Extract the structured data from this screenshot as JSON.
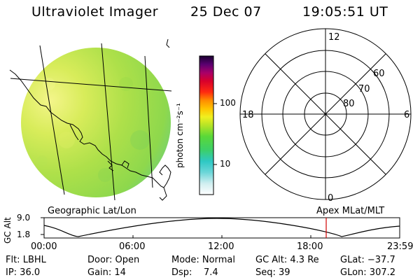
{
  "header": {
    "instrument": "Ultraviolet Imager",
    "date": "25 Dec 07",
    "time": "19:05:51 UT"
  },
  "colorbar": {
    "unit_label": "photon cm⁻²s⁻¹",
    "ticks": [
      "100",
      "10"
    ]
  },
  "polar_plot": {
    "lat_labels": [
      "60",
      "70",
      "80"
    ],
    "mlt_labels": [
      "12",
      "18",
      "6",
      "0"
    ],
    "caption": "Apex MLat/MLT"
  },
  "map_caption": "Geographic Lat/Lon",
  "timeline": {
    "ylabel": "GC Alt",
    "y_ticks": [
      "9.0",
      "1.8"
    ],
    "x_ticks": [
      "00:00",
      "06:00",
      "12:00",
      "18:00",
      "23:59"
    ],
    "marker_color": "#d00000"
  },
  "info": {
    "filter": "Flt: LBHL",
    "door": "Door: Open",
    "mode": "Mode: Normal",
    "gc_alt": "GC Alt: 4.3 Re",
    "glat": "GLat: −37.7",
    "ip": "IP: 36.0",
    "gain": "Gain: 14",
    "dsp": "Dsp:    7.4",
    "seq": "Seq: 39",
    "glon": "GLon: 307.2"
  }
}
